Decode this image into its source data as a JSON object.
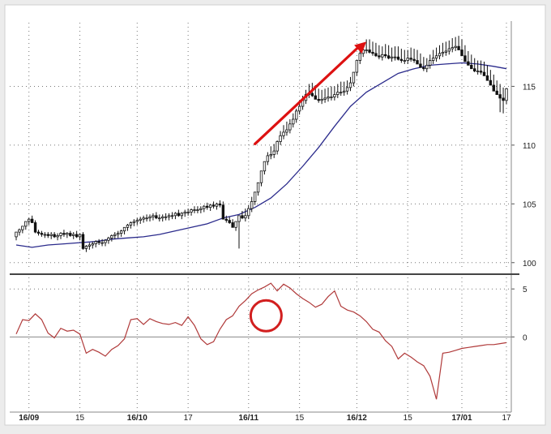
{
  "chart_data": [
    {
      "type": "candlestick",
      "panel": "price",
      "title": "",
      "ylim": [
        99.5,
        120
      ],
      "grid": true,
      "y_ticks": [
        100,
        105,
        110,
        115
      ],
      "y_tick_labels": [
        "100",
        "105",
        "110",
        "115"
      ],
      "colors": {
        "up_candle": "#ffffff",
        "down_candle": "#111111",
        "moving_average": "#2b2b8c",
        "arrow": "#dd1111"
      },
      "series": [
        {
          "kind": "candles",
          "x": [
            0,
            1,
            2,
            3,
            4,
            5,
            6,
            7,
            8,
            9,
            10,
            11,
            12,
            13,
            14,
            15,
            16,
            17,
            18,
            19,
            20,
            21,
            22,
            23,
            24,
            25,
            26,
            27,
            28,
            29,
            30,
            31,
            32,
            33,
            34,
            35,
            36,
            37,
            38,
            39,
            40,
            41,
            42,
            43,
            44,
            45,
            46,
            47,
            48,
            49,
            50,
            51,
            52,
            53,
            54,
            55,
            56,
            57,
            58,
            59,
            60,
            61,
            62,
            63,
            64,
            65,
            66,
            67,
            68,
            69,
            70,
            71,
            72,
            73,
            74,
            75,
            76,
            77,
            78,
            79,
            80,
            81,
            82,
            83,
            84,
            85,
            86,
            87,
            88,
            89,
            90,
            91,
            92,
            93,
            94,
            95,
            96,
            97,
            98,
            99,
            100,
            101,
            102,
            103,
            104,
            105,
            106,
            107,
            108,
            109,
            110,
            111,
            112,
            113,
            114,
            115,
            116,
            117,
            118,
            119,
            120,
            121,
            122,
            123,
            124,
            125,
            126,
            127,
            128,
            129,
            130,
            131,
            132,
            133,
            134,
            135,
            136,
            137,
            138,
            139,
            140,
            141,
            142,
            143,
            144,
            145,
            146,
            147,
            148,
            149,
            150,
            151,
            152,
            153,
            154
          ],
          "open": [
            102.2,
            102.6,
            102.8,
            103.1,
            103.5,
            103.7,
            103.4,
            102.6,
            102.5,
            102.4,
            102.4,
            102.3,
            102.4,
            102.2,
            102.3,
            102.5,
            102.4,
            102.5,
            102.3,
            102.4,
            102.2,
            102.4,
            101.2,
            101.4,
            101.5,
            101.6,
            101.8,
            101.7,
            101.7,
            101.9,
            102.1,
            102.3,
            102.4,
            102.5,
            102.7,
            103.0,
            103.2,
            103.4,
            103.5,
            103.6,
            103.7,
            103.8,
            103.8,
            103.9,
            104.0,
            103.8,
            103.8,
            103.9,
            103.9,
            104.0,
            104.0,
            104.2,
            104.0,
            104.2,
            104.3,
            104.3,
            104.5,
            104.5,
            104.5,
            104.6,
            104.8,
            104.7,
            104.9,
            104.8,
            105.0,
            104.9,
            103.7,
            103.6,
            103.4,
            103.0,
            103.5,
            104.0,
            103.8,
            104.0,
            104.6,
            105.2,
            106.0,
            106.8,
            107.8,
            108.6,
            109.1,
            109.2,
            109.5,
            110.3,
            110.8,
            111.1,
            111.3,
            111.8,
            112.2,
            112.9,
            113.3,
            113.8,
            114.3,
            114.4,
            114.2,
            113.9,
            113.8,
            113.9,
            114.0,
            114.1,
            114.1,
            114.3,
            114.5,
            114.5,
            114.6,
            114.9,
            115.3,
            116.2,
            117.2,
            117.8,
            118.1,
            118.1,
            117.9,
            117.8,
            117.6,
            117.5,
            117.7,
            117.6,
            117.4,
            117.5,
            117.5,
            117.3,
            117.2,
            117.2,
            117.4,
            117.3,
            117.2,
            116.9,
            116.6,
            116.5,
            116.8,
            117.2,
            117.4,
            117.6,
            117.8,
            117.9,
            118.0,
            118.2,
            118.3,
            118.4,
            118.1,
            117.6,
            117.1,
            116.8,
            116.5,
            116.3,
            116.3,
            116.2,
            115.9,
            115.5,
            115.1,
            114.6,
            114.3,
            114.0,
            113.8
          ],
          "high": [
            102.5,
            102.9,
            103.1,
            103.4,
            103.8,
            104.0,
            103.6,
            102.8,
            102.7,
            102.6,
            102.6,
            102.6,
            102.6,
            102.5,
            102.6,
            102.8,
            102.6,
            102.7,
            102.6,
            102.7,
            102.5,
            102.6,
            101.5,
            101.7,
            101.8,
            101.9,
            102.0,
            102.0,
            102.0,
            102.2,
            102.4,
            102.6,
            102.7,
            102.8,
            103.0,
            103.3,
            103.5,
            103.7,
            103.8,
            103.9,
            104.0,
            104.1,
            104.1,
            104.2,
            104.3,
            104.1,
            104.1,
            104.2,
            104.2,
            104.3,
            104.3,
            104.5,
            104.3,
            104.5,
            104.6,
            104.6,
            104.8,
            104.8,
            104.8,
            104.9,
            105.1,
            105.0,
            105.2,
            105.1,
            105.3,
            105.2,
            104.0,
            103.9,
            103.7,
            103.3,
            103.8,
            104.4,
            104.6,
            104.9,
            105.6,
            106.0,
            106.8,
            107.6,
            108.6,
            109.4,
            109.9,
            110.1,
            110.4,
            111.2,
            111.7,
            112.0,
            112.2,
            112.7,
            113.1,
            113.8,
            114.2,
            114.7,
            115.2,
            115.3,
            115.1,
            114.8,
            114.7,
            114.8,
            114.9,
            115.0,
            115.0,
            115.2,
            115.4,
            115.4,
            115.5,
            115.8,
            116.2,
            117.1,
            118.1,
            118.7,
            119.0,
            119.0,
            118.8,
            118.7,
            118.5,
            118.4,
            118.6,
            118.5,
            118.3,
            118.4,
            118.4,
            118.2,
            118.1,
            118.1,
            118.3,
            118.2,
            118.1,
            117.8,
            117.5,
            117.4,
            117.7,
            118.1,
            118.3,
            118.5,
            118.7,
            118.8,
            118.9,
            119.1,
            119.2,
            119.3,
            119.0,
            118.5,
            118.0,
            117.7,
            117.4,
            117.2,
            117.2,
            117.1,
            116.8,
            116.4,
            116.0,
            115.5,
            115.2,
            114.9,
            114.7
          ],
          "low": [
            101.9,
            102.3,
            102.5,
            102.8,
            103.2,
            103.4,
            102.5,
            102.3,
            102.2,
            102.1,
            102.1,
            102.0,
            102.1,
            101.9,
            102.0,
            102.2,
            102.1,
            102.2,
            102.0,
            102.1,
            101.9,
            101.1,
            100.9,
            101.1,
            101.2,
            101.3,
            101.5,
            101.4,
            101.4,
            101.6,
            101.8,
            102.0,
            102.1,
            102.2,
            102.4,
            102.7,
            102.9,
            103.1,
            103.2,
            103.3,
            103.4,
            103.5,
            103.5,
            103.6,
            103.7,
            103.5,
            103.5,
            103.6,
            103.6,
            103.7,
            103.7,
            103.9,
            103.7,
            103.9,
            104.0,
            104.0,
            104.2,
            104.2,
            104.2,
            104.3,
            104.5,
            104.4,
            104.6,
            104.5,
            104.7,
            103.9,
            103.4,
            103.3,
            103.1,
            102.7,
            101.2,
            103.7,
            103.5,
            103.7,
            104.3,
            104.9,
            105.7,
            106.5,
            107.5,
            108.3,
            108.8,
            108.9,
            109.2,
            110.0,
            110.5,
            110.8,
            111.0,
            111.5,
            111.9,
            112.6,
            113.0,
            113.5,
            114.0,
            114.1,
            113.9,
            113.6,
            113.5,
            113.6,
            113.7,
            113.8,
            113.8,
            114.0,
            114.2,
            114.2,
            114.3,
            114.6,
            115.0,
            115.9,
            116.9,
            117.5,
            117.8,
            117.8,
            117.6,
            117.5,
            117.3,
            117.2,
            117.4,
            117.3,
            117.1,
            117.2,
            117.2,
            117.0,
            116.9,
            116.9,
            117.1,
            117.0,
            116.9,
            116.6,
            116.3,
            116.2,
            116.5,
            116.9,
            117.1,
            117.3,
            117.5,
            117.6,
            117.7,
            117.9,
            118.0,
            118.1,
            117.8,
            117.3,
            116.8,
            116.5,
            116.2,
            116.0,
            116.0,
            115.9,
            115.6,
            115.2,
            114.8,
            114.3,
            112.8,
            112.7,
            113.5
          ],
          "close": [
            102.6,
            102.8,
            103.1,
            103.5,
            103.7,
            103.4,
            102.6,
            102.5,
            102.4,
            102.4,
            102.3,
            102.4,
            102.2,
            102.3,
            102.5,
            102.4,
            102.5,
            102.3,
            102.4,
            102.2,
            102.4,
            101.2,
            101.4,
            101.5,
            101.6,
            101.8,
            101.7,
            101.7,
            101.9,
            102.1,
            102.3,
            102.4,
            102.5,
            102.7,
            103.0,
            103.2,
            103.4,
            103.5,
            103.6,
            103.7,
            103.8,
            103.8,
            103.9,
            104.0,
            103.8,
            103.8,
            103.9,
            103.9,
            104.0,
            104.0,
            104.2,
            104.0,
            104.2,
            104.3,
            104.3,
            104.5,
            104.5,
            104.5,
            104.6,
            104.8,
            104.7,
            104.9,
            104.8,
            105.0,
            104.9,
            103.7,
            103.6,
            103.4,
            103.0,
            103.5,
            104.0,
            103.8,
            104.0,
            104.6,
            105.2,
            106.0,
            106.8,
            107.8,
            108.6,
            109.1,
            109.2,
            109.5,
            110.3,
            110.8,
            111.1,
            111.3,
            111.8,
            112.2,
            112.9,
            113.3,
            113.8,
            114.3,
            114.4,
            114.2,
            113.9,
            113.8,
            113.9,
            114.0,
            114.1,
            114.1,
            114.3,
            114.5,
            114.5,
            114.6,
            114.9,
            115.3,
            116.2,
            117.2,
            117.8,
            118.1,
            118.1,
            117.9,
            117.8,
            117.6,
            117.5,
            117.7,
            117.6,
            117.4,
            117.5,
            117.5,
            117.3,
            117.2,
            117.2,
            117.4,
            117.3,
            117.2,
            116.9,
            116.6,
            116.5,
            116.8,
            117.2,
            117.4,
            117.6,
            117.8,
            117.9,
            118.0,
            118.2,
            118.3,
            118.4,
            118.1,
            117.6,
            117.1,
            116.8,
            116.5,
            116.3,
            116.3,
            116.2,
            115.9,
            115.5,
            115.1,
            114.6,
            114.3,
            114.0,
            113.8,
            114.8
          ]
        },
        {
          "kind": "line",
          "x": [
            0,
            5,
            10,
            15,
            20,
            25,
            30,
            35,
            40,
            45,
            50,
            55,
            60,
            65,
            70,
            75,
            80,
            85,
            90,
            95,
            100,
            105,
            110,
            115,
            120,
            125,
            130,
            135,
            140,
            145,
            150,
            154
          ],
          "y": [
            101.5,
            101.3,
            101.5,
            101.6,
            101.7,
            101.8,
            102.0,
            102.1,
            102.2,
            102.4,
            102.7,
            103.0,
            103.3,
            103.8,
            104.1,
            104.7,
            105.5,
            106.7,
            108.2,
            109.8,
            111.6,
            113.3,
            114.5,
            115.3,
            116.1,
            116.5,
            116.8,
            116.9,
            117.0,
            116.9,
            116.7,
            116.5
          ]
        }
      ],
      "annotations": [
        "red arrow indicating upward trend"
      ]
    },
    {
      "type": "line",
      "panel": "oscillator",
      "title": "",
      "ylim": [
        -7.5,
        6.2
      ],
      "grid": true,
      "y_ticks": [
        0,
        5
      ],
      "y_tick_labels": [
        "0",
        "5"
      ],
      "zero_line": true,
      "colors": {
        "line": "#b03a3a",
        "zero_line": "#888888",
        "circle": "#d21f1f"
      },
      "series": [
        {
          "x": [
            0,
            2,
            4,
            6,
            8,
            10,
            12,
            14,
            16,
            18,
            20,
            22,
            24,
            26,
            28,
            30,
            32,
            34,
            36,
            38,
            40,
            42,
            44,
            46,
            48,
            50,
            52,
            54,
            56,
            58,
            60,
            62,
            64,
            66,
            68,
            70,
            72,
            74,
            76,
            78,
            80,
            82,
            84,
            86,
            88,
            90,
            92,
            94,
            96,
            98,
            100,
            102,
            104,
            106,
            108,
            110,
            112,
            114,
            116,
            118,
            120,
            122,
            124,
            126,
            128,
            130,
            132,
            134,
            136,
            138,
            140,
            142,
            144,
            146,
            148,
            150,
            152,
            154
          ],
          "y": [
            0.3,
            1.8,
            1.7,
            2.4,
            1.8,
            0.4,
            -0.1,
            0.9,
            0.6,
            0.7,
            0.3,
            -1.7,
            -1.3,
            -1.6,
            -2.0,
            -1.3,
            -0.9,
            -0.2,
            1.8,
            1.9,
            1.3,
            1.9,
            1.6,
            1.4,
            1.3,
            1.5,
            1.2,
            2.1,
            1.2,
            -0.2,
            -0.8,
            -0.5,
            0.8,
            1.8,
            2.2,
            3.2,
            3.8,
            4.5,
            4.9,
            5.2,
            5.6,
            4.8,
            5.5,
            5.1,
            4.5,
            4.0,
            3.6,
            3.1,
            3.4,
            4.2,
            4.8,
            3.2,
            2.8,
            2.6,
            2.2,
            1.6,
            0.8,
            0.5,
            -0.4,
            -1.0,
            -2.3,
            -1.7,
            -2.1,
            -2.6,
            -3.0,
            -4.1,
            -6.5,
            -1.7,
            -1.6,
            -1.4,
            -1.2,
            -1.1,
            -1.0,
            -0.9,
            -0.8,
            -0.8,
            -0.7,
            -0.6
          ]
        }
      ],
      "annotations": [
        "red circle highlighting zero-line crossover"
      ]
    }
  ],
  "x_axis": {
    "tick_labels": [
      "16/09",
      "15",
      "16/10",
      "17",
      "16/11",
      "15",
      "16/12",
      "15",
      "17/01",
      "17"
    ]
  }
}
